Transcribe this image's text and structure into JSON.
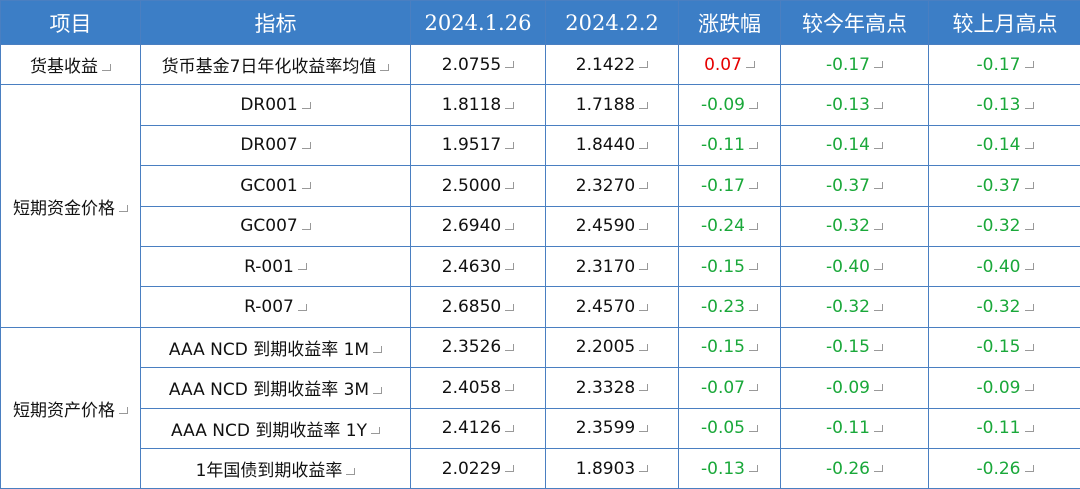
{
  "header": [
    "项目",
    "指标",
    "2024.1.26",
    "2024.2.2",
    "涨跌幅",
    "较今年高点",
    "较上月高点"
  ],
  "groups": [
    {
      "name": "货基收益",
      "rows": [
        [
          "货币基金7日年化收益率均值",
          "2.0755",
          "2.1422",
          "0.07",
          "-0.17",
          "-0.17"
        ]
      ]
    },
    {
      "name": "短期资金价格",
      "rows": [
        [
          "DR001",
          "1.8118",
          "1.7188",
          "-0.09",
          "-0.13",
          "-0.13"
        ],
        [
          "DR007",
          "1.9517",
          "1.8440",
          "-0.11",
          "-0.14",
          "-0.14"
        ],
        [
          "GC001",
          "2.5000",
          "2.3270",
          "-0.17",
          "-0.37",
          "-0.37"
        ],
        [
          "GC007",
          "2.6940",
          "2.4590",
          "-0.24",
          "-0.32",
          "-0.32"
        ],
        [
          "R-001",
          "2.4630",
          "2.3170",
          "-0.15",
          "-0.40",
          "-0.40"
        ],
        [
          "R-007",
          "2.6850",
          "2.4570",
          "-0.23",
          "-0.32",
          "-0.32"
        ]
      ]
    },
    {
      "name": "短期资产价格",
      "rows": [
        [
          "AAA NCD 到期收益率 1M",
          "2.3526",
          "2.2005",
          "-0.15",
          "-0.15",
          "-0.15"
        ],
        [
          "AAA NCD 到期收益率 3M",
          "2.4058",
          "2.3328",
          "-0.07",
          "-0.09",
          "-0.09"
        ],
        [
          "AAA NCD 到期收益率 1Y",
          "2.4126",
          "2.3599",
          "-0.05",
          "-0.11",
          "-0.11"
        ],
        [
          "1年国债到期收益率",
          "2.0229",
          "1.8903",
          "-0.13",
          "-0.26",
          "-0.26"
        ]
      ]
    }
  ]
}
